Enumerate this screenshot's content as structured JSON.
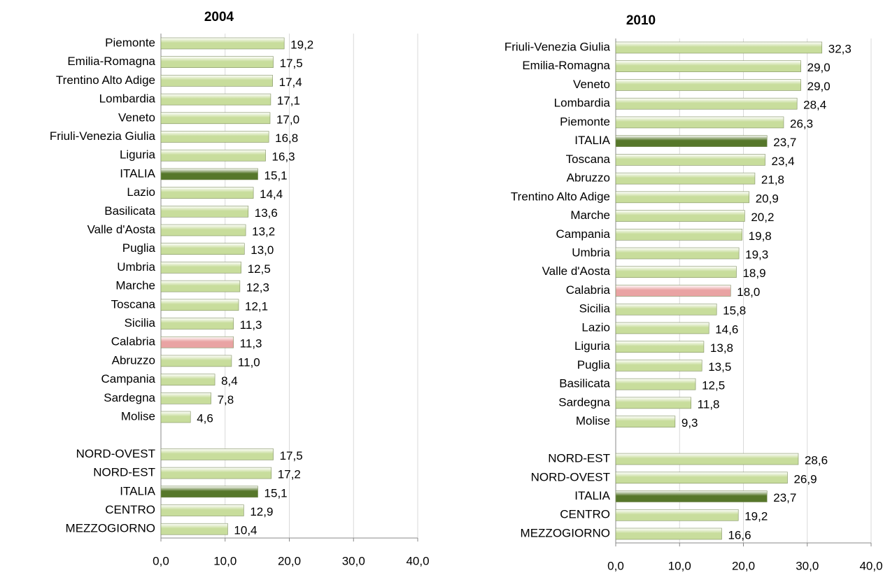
{
  "chart_data": [
    {
      "type": "bar",
      "orientation": "horizontal",
      "title": "2004",
      "categories": [
        "Piemonte",
        "Emilia-Romagna",
        "Trentino Alto Adige",
        "Lombardia",
        "Veneto",
        "Friuli-Venezia Giulia",
        "Liguria",
        "ITALIA",
        "Lazio",
        "Basilicata",
        "Valle d'Aosta",
        "Puglia",
        "Umbria",
        "Marche",
        "Toscana",
        "Sicilia",
        "Calabria",
        "Abruzzo",
        "Campania",
        "Sardegna",
        "Molise",
        null,
        "NORD-OVEST",
        "NORD-EST",
        "ITALIA",
        "CENTRO",
        "MEZZOGIORNO"
      ],
      "values": [
        19.2,
        17.5,
        17.4,
        17.1,
        17.0,
        16.8,
        16.3,
        15.1,
        14.4,
        13.6,
        13.2,
        13.0,
        12.5,
        12.3,
        12.1,
        11.3,
        11.3,
        11.0,
        8.4,
        7.8,
        4.6,
        null,
        17.5,
        17.2,
        15.1,
        12.9,
        10.4
      ],
      "value_labels": [
        "19,2",
        "17,5",
        "17,4",
        "17,1",
        "17,0",
        "16,8",
        "16,3",
        "15,1",
        "14,4",
        "13,6",
        "13,2",
        "13,0",
        "12,5",
        "12,3",
        "12,1",
        "11,3",
        "11,3",
        "11,0",
        "8,4",
        "7,8",
        "4,6",
        null,
        "17,5",
        "17,2",
        "15,1",
        "12,9",
        "10,4"
      ],
      "colors": [
        "#c8dd9c",
        "#c8dd9c",
        "#c8dd9c",
        "#c8dd9c",
        "#c8dd9c",
        "#c8dd9c",
        "#c8dd9c",
        "#56772a",
        "#c8dd9c",
        "#c8dd9c",
        "#c8dd9c",
        "#c8dd9c",
        "#c8dd9c",
        "#c8dd9c",
        "#c8dd9c",
        "#c8dd9c",
        "#e9a3a3",
        "#c8dd9c",
        "#c8dd9c",
        "#c8dd9c",
        "#c8dd9c",
        null,
        "#c8dd9c",
        "#c8dd9c",
        "#56772a",
        "#c8dd9c",
        "#c8dd9c"
      ],
      "xlim": [
        0,
        40
      ],
      "xticks": [
        {
          "value": 0,
          "label": "0,0"
        },
        {
          "value": 10,
          "label": "10,0"
        },
        {
          "value": 20,
          "label": "20,0"
        },
        {
          "value": 30,
          "label": "30,0"
        },
        {
          "value": 40,
          "label": "40,0"
        }
      ],
      "grid": true
    },
    {
      "type": "bar",
      "orientation": "horizontal",
      "title": "2010",
      "categories": [
        "Friuli-Venezia Giulia",
        "Emilia-Romagna",
        "Veneto",
        "Lombardia",
        "Piemonte",
        "ITALIA",
        "Toscana",
        "Abruzzo",
        "Trentino Alto Adige",
        "Marche",
        "Campania",
        "Umbria",
        "Valle d'Aosta",
        "Calabria",
        "Sicilia",
        "Lazio",
        "Liguria",
        "Puglia",
        "Basilicata",
        "Sardegna",
        "Molise",
        null,
        "NORD-EST",
        "NORD-OVEST",
        "ITALIA",
        "CENTRO",
        "MEZZOGIORNO"
      ],
      "values": [
        32.3,
        29.0,
        29.0,
        28.4,
        26.3,
        23.7,
        23.4,
        21.8,
        20.9,
        20.2,
        19.8,
        19.3,
        18.9,
        18.0,
        15.8,
        14.6,
        13.8,
        13.5,
        12.5,
        11.8,
        9.3,
        null,
        28.6,
        26.9,
        23.7,
        19.2,
        16.6
      ],
      "value_labels": [
        "32,3",
        "29,0",
        "29,0",
        "28,4",
        "26,3",
        "23,7",
        "23,4",
        "21,8",
        "20,9",
        "20,2",
        "19,8",
        "19,3",
        "18,9",
        "18,0",
        "15,8",
        "14,6",
        "13,8",
        "13,5",
        "12,5",
        "11,8",
        "9,3",
        null,
        "28,6",
        "26,9",
        "23,7",
        "19,2",
        "16,6"
      ],
      "colors": [
        "#c8dd9c",
        "#c8dd9c",
        "#c8dd9c",
        "#c8dd9c",
        "#c8dd9c",
        "#56772a",
        "#c8dd9c",
        "#c8dd9c",
        "#c8dd9c",
        "#c8dd9c",
        "#c8dd9c",
        "#c8dd9c",
        "#c8dd9c",
        "#e9a3a3",
        "#c8dd9c",
        "#c8dd9c",
        "#c8dd9c",
        "#c8dd9c",
        "#c8dd9c",
        "#c8dd9c",
        "#c8dd9c",
        null,
        "#c8dd9c",
        "#c8dd9c",
        "#56772a",
        "#c8dd9c",
        "#c8dd9c"
      ],
      "xlim": [
        0,
        40
      ],
      "xticks": [
        {
          "value": 0,
          "label": "0,0"
        },
        {
          "value": 10,
          "label": "10,0"
        },
        {
          "value": 20,
          "label": "20,0"
        },
        {
          "value": 30,
          "label": "30,0"
        },
        {
          "value": 40,
          "label": "40,0"
        }
      ],
      "grid": true
    }
  ]
}
